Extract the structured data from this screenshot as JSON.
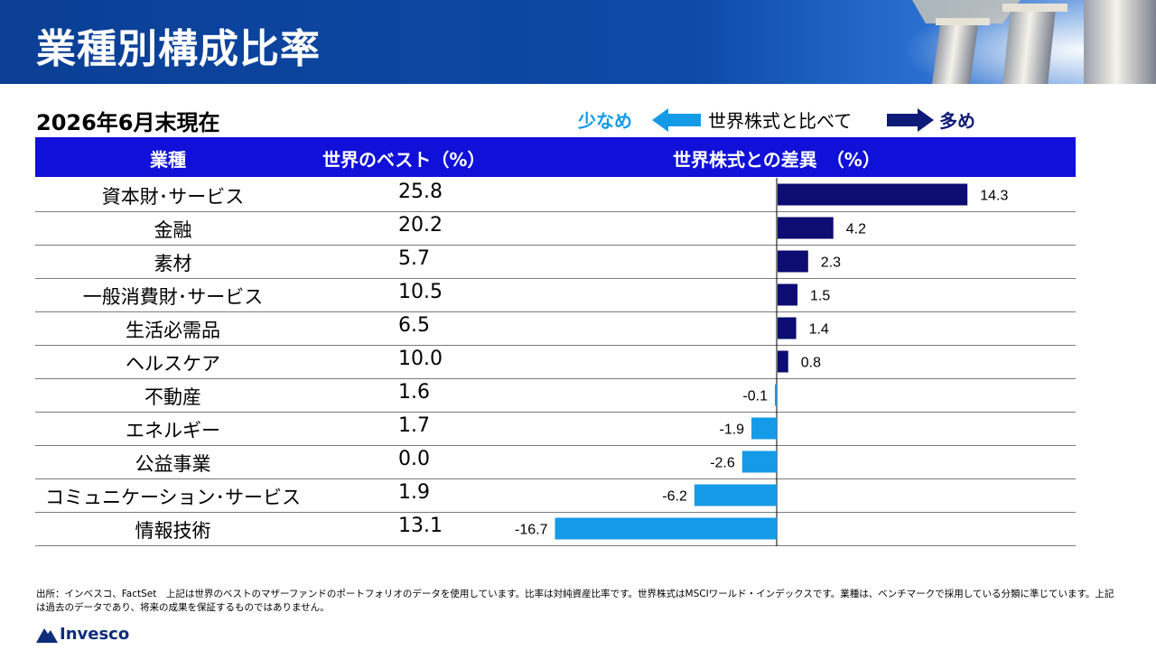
{
  "header": {
    "title": "業種別構成比率"
  },
  "subtitle": "2026年6月末現在",
  "legend": {
    "less": "少なめ",
    "middle": "世界株式と比べて",
    "more": "多め"
  },
  "table": {
    "columns": [
      "業種",
      "世界のベスト（%）",
      "世界株式との差異　（%）"
    ],
    "rows": [
      {
        "sector": "資本財･サービス",
        "weight": "25.8",
        "diff": "14.3"
      },
      {
        "sector": "金融",
        "weight": "20.2",
        "diff": "4.2"
      },
      {
        "sector": "素材",
        "weight": "5.7",
        "diff": "2.3"
      },
      {
        "sector": "一般消費財･サービス",
        "weight": "10.5",
        "diff": "1.5"
      },
      {
        "sector": "生活必需品",
        "weight": "6.5",
        "diff": "1.4"
      },
      {
        "sector": "ヘルスケア",
        "weight": "10.0",
        "diff": "0.8"
      },
      {
        "sector": "不動産",
        "weight": "1.6",
        "diff": "-0.1"
      },
      {
        "sector": "エネルギー",
        "weight": "1.7",
        "diff": "-1.9"
      },
      {
        "sector": "公益事業",
        "weight": "0.0",
        "diff": "-2.6"
      },
      {
        "sector": "コミュニケーション･サービス",
        "weight": "1.9",
        "diff": "-6.2"
      },
      {
        "sector": "情報技術",
        "weight": "13.1",
        "diff": "-16.7"
      }
    ]
  },
  "chart_data": {
    "type": "bar",
    "orientation": "horizontal",
    "title": "世界株式との差異　（%）",
    "categories": [
      "資本財･サービス",
      "金融",
      "素材",
      "一般消費財･サービス",
      "生活必需品",
      "ヘルスケア",
      "不動産",
      "エネルギー",
      "公益事業",
      "コミュニケーション･サービス",
      "情報技術"
    ],
    "values": [
      14.3,
      4.2,
      2.3,
      1.5,
      1.4,
      0.8,
      -0.1,
      -1.9,
      -2.6,
      -6.2,
      -16.7
    ],
    "xlim": [
      -18.5,
      18.5
    ],
    "grid": false,
    "colors": {
      "positive": "#0c0c72",
      "negative": "#159ae8"
    }
  },
  "footnote": "出所：インベスコ、FactSet　上記は世界のベストのマザーファンドのポートフォリオのデータを使用しています。比率は対純資産比率です。世界株式はMSCIワールド・インデックスです。業種は、ベンチマークで採用している分類に準じています。上記は過去のデータであり、将来の成果を保証するものではありません。",
  "logo": {
    "name": "Invesco"
  },
  "colors": {
    "header_bg": "#0b3f95",
    "table_header_bg": "#1010d8",
    "positive_bar": "#0c0c72",
    "negative_bar": "#159ae8"
  }
}
